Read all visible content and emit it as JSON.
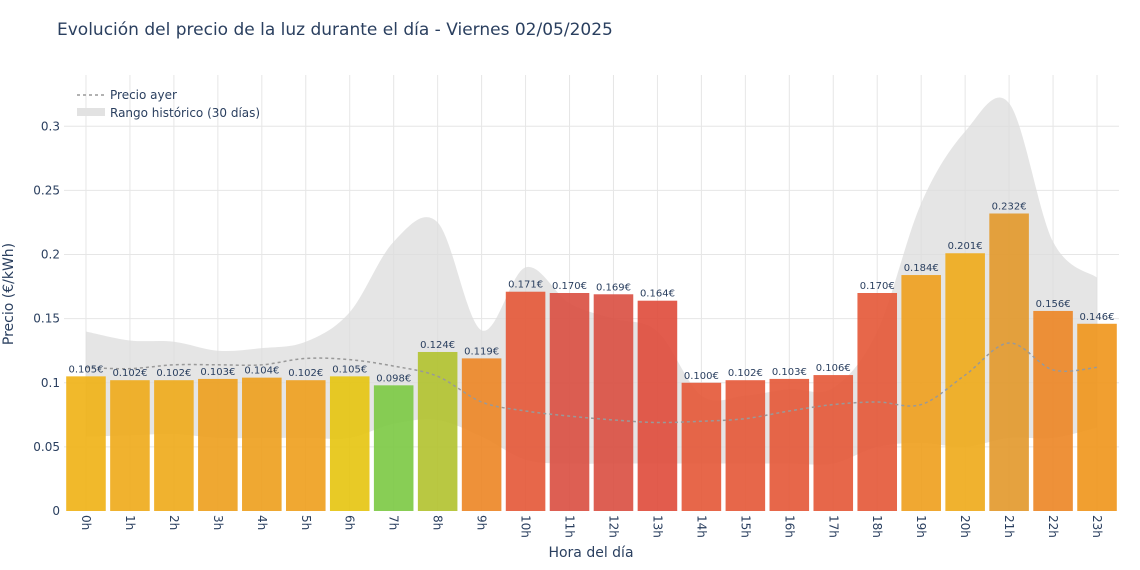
{
  "chart_data": {
    "type": "bar",
    "title": "Evolución del precio de la luz durante el día - Viernes 02/05/2025",
    "xlabel": "Hora del día",
    "ylabel": "Precio (€/kWh)",
    "ylim": [
      0,
      0.34
    ],
    "yticks": [
      "0",
      "0.05",
      "0.1",
      "0.15",
      "0.2",
      "0.25",
      "0.3"
    ],
    "categories": [
      "0h",
      "1h",
      "2h",
      "3h",
      "4h",
      "5h",
      "6h",
      "7h",
      "8h",
      "9h",
      "10h",
      "11h",
      "12h",
      "13h",
      "14h",
      "15h",
      "16h",
      "17h",
      "18h",
      "19h",
      "20h",
      "21h",
      "22h",
      "23h"
    ],
    "values": [
      0.105,
      0.102,
      0.102,
      0.103,
      0.104,
      0.102,
      0.105,
      0.098,
      0.124,
      0.119,
      0.171,
      0.17,
      0.169,
      0.164,
      0.1,
      0.102,
      0.103,
      0.106,
      0.17,
      0.184,
      0.201,
      0.232,
      0.156,
      0.146
    ],
    "labels": [
      "0.105€",
      "0.102€",
      "0.102€",
      "0.103€",
      "0.104€",
      "0.102€",
      "0.105€",
      "0.098€",
      "0.124€",
      "0.119€",
      "0.171€",
      "0.170€",
      "0.169€",
      "0.164€",
      "0.100€",
      "0.102€",
      "0.103€",
      "0.106€",
      "0.170€",
      "0.184€",
      "0.201€",
      "0.232€",
      "0.156€",
      "0.146€"
    ],
    "bar_colors": [
      "#f0b114",
      "#eeaa18",
      "#eeaa18",
      "#ed9e1c",
      "#ed9e1c",
      "#ee9f1c",
      "#e6c40e",
      "#7bc943",
      "#b1c22e",
      "#ec8524",
      "#e45636",
      "#d94e40",
      "#d94e40",
      "#df4a3a",
      "#e45636",
      "#e45636",
      "#e45636",
      "#e45636",
      "#e45636",
      "#ee9f1c",
      "#eeaa18",
      "#e2982a",
      "#ec8524",
      "#f0951a"
    ],
    "series": [
      {
        "name": "Precio ayer",
        "style": "dotted",
        "color": "#999999",
        "values": [
          0.112,
          0.111,
          0.114,
          0.114,
          0.114,
          0.119,
          0.118,
          0.113,
          0.105,
          0.085,
          0.078,
          0.074,
          0.071,
          0.069,
          0.07,
          0.072,
          0.078,
          0.083,
          0.085,
          0.083,
          0.106,
          0.131,
          0.11,
          0.112
        ]
      },
      {
        "name": "Rango histórico (30 días)",
        "style": "band",
        "color": "#e5e5e5",
        "upper": [
          0.14,
          0.133,
          0.132,
          0.125,
          0.127,
          0.132,
          0.155,
          0.21,
          0.225,
          0.141,
          0.19,
          0.162,
          0.15,
          0.14,
          0.09,
          0.09,
          0.095,
          0.096,
          0.14,
          0.24,
          0.296,
          0.318,
          0.21,
          0.182
        ],
        "lower": [
          0.058,
          0.059,
          0.06,
          0.057,
          0.057,
          0.057,
          0.057,
          0.068,
          0.071,
          0.058,
          0.04,
          0.037,
          0.037,
          0.037,
          0.037,
          0.037,
          0.037,
          0.037,
          0.05,
          0.053,
          0.05,
          0.057,
          0.057,
          0.065
        ]
      }
    ],
    "legend": {
      "position": "top-left",
      "items": [
        "Precio ayer",
        "Rango histórico (30 días)"
      ]
    },
    "grid": true
  }
}
